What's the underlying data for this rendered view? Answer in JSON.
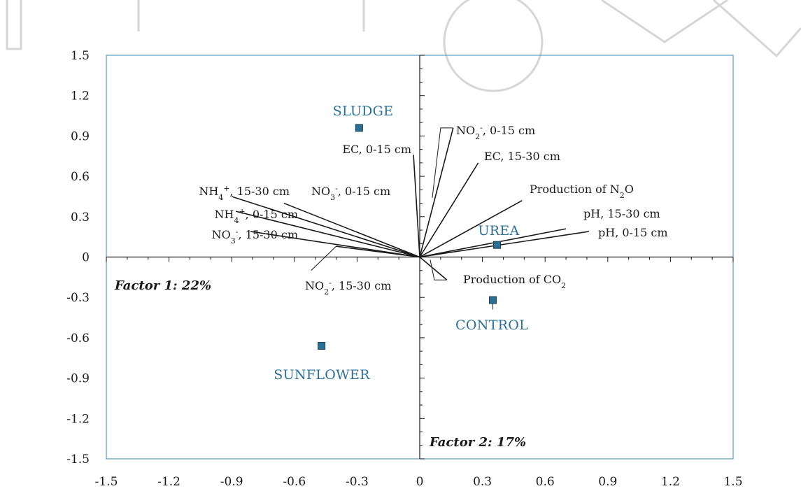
{
  "chart_data": {
    "type": "scatter",
    "title": "",
    "xlabel": "",
    "ylabel": "",
    "xlim": [
      -1.5,
      1.5
    ],
    "ylim": [
      -1.5,
      1.5
    ],
    "xticks": [
      "-1.5",
      "-1.2",
      "-0.9",
      "-0.6",
      "-0.3",
      "0",
      "0.3",
      "0.6",
      "0.9",
      "1.2",
      "1.5"
    ],
    "yticks": [
      "1.5",
      "1.2",
      "0.9",
      "0.6",
      "0.3",
      "0",
      "-0.3",
      "-0.6",
      "-0.9",
      "-1.2",
      "-1.5"
    ],
    "grid": false,
    "axis_labels": {
      "factor1": "Factor 1: 22%",
      "factor2": "Factor 2: 17%"
    },
    "treatments": [
      {
        "name": "SLUDGE",
        "x": -0.29,
        "y": 0.96
      },
      {
        "name": "UREA",
        "x": 0.37,
        "y": 0.09
      },
      {
        "name": "CONTROL",
        "x": 0.35,
        "y": -0.32
      },
      {
        "name": "SUNFLOWER",
        "x": -0.47,
        "y": -0.66
      }
    ],
    "variables": [
      {
        "name": "EC, 0-15 cm",
        "main": "EC, 0-15 cm",
        "sub": "",
        "sup": "",
        "tail": "",
        "x": -0.03,
        "y": 0.76
      },
      {
        "name": "NO2-, 0-15 cm",
        "main": "NO",
        "sub": "2",
        "sup": "-",
        "tail": ", 0-15 cm",
        "x": 0.16,
        "y": 0.96
      },
      {
        "name": "EC, 15-30 cm",
        "main": "EC, 15-30 cm",
        "sub": "",
        "sup": "",
        "tail": "",
        "x": 0.28,
        "y": 0.7
      },
      {
        "name": "Production of N2O",
        "main": "Production of N",
        "sub": "2",
        "sup": "",
        "tail": "O",
        "x": 0.49,
        "y": 0.42
      },
      {
        "name": "pH, 15-30 cm",
        "main": "pH, 15-30 cm",
        "sub": "",
        "sup": "",
        "tail": "",
        "x": 0.7,
        "y": 0.21
      },
      {
        "name": "pH, 0-15 cm",
        "main": "pH, 0-15 cm",
        "sub": "",
        "sup": "",
        "tail": "",
        "x": 0.81,
        "y": 0.19
      },
      {
        "name": "Production of CO2",
        "main": "Production of CO",
        "sub": "2",
        "sup": "",
        "tail": "",
        "x": 0.13,
        "y": -0.17
      },
      {
        "name": "NO2-, 15-30 cm",
        "main": "NO",
        "sub": "2",
        "sup": "-",
        "tail": ", 15-30 cm",
        "x": -0.4,
        "y": 0.08
      },
      {
        "name": "NO3-, 15-30 cm",
        "main": "NO",
        "sub": "3",
        "sup": "-",
        "tail": ", 15-30 cm",
        "x": -0.81,
        "y": 0.19
      },
      {
        "name": "NH4+, 0-15 cm",
        "main": "NH",
        "sub": "4",
        "sup": "+",
        "tail": ", 0-15 cm",
        "x": -0.88,
        "y": 0.34
      },
      {
        "name": "NH4+, 15-30 cm",
        "main": "NH",
        "sub": "4",
        "sup": "+",
        "tail": ", 15-30 cm",
        "x": -0.9,
        "y": 0.45
      },
      {
        "name": "NO3-, 0-15 cm",
        "main": "NO",
        "sub": "3",
        "sup": "-",
        "tail": ", 0-15 cm",
        "x": -0.65,
        "y": 0.4
      }
    ],
    "colors": {
      "treatment_marker": "#2b6f95",
      "treatment_text": "#2b6f95",
      "frame": "#5b9bc4",
      "vectors": "#1a1a1a"
    }
  }
}
